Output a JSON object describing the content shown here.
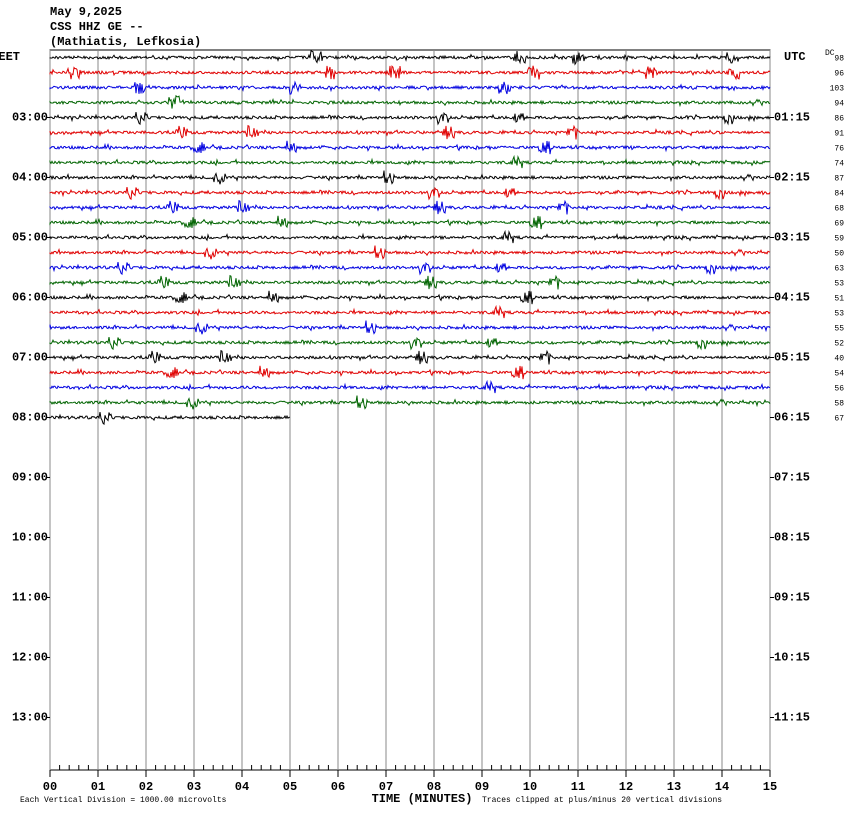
{
  "chart_data": {
    "type": "helicorder",
    "title": [
      "May 9,2025",
      "CSS HHZ GE --",
      "(Mathiatis, Lefkosia)"
    ],
    "left_zone": "EET",
    "right_zone": "UTC",
    "dc_label": "DC",
    "xlabel": "TIME (MINUTES)",
    "scale_note": "Each Vertical Division = 1000.00 microvolts",
    "clip_note": "Traces clipped at plus/minus 20 vertical divisions",
    "xlim": [
      0,
      15
    ],
    "xticks": [
      {
        "value": 0,
        "label": "00"
      },
      {
        "value": 1,
        "label": "01"
      },
      {
        "value": 2,
        "label": "02"
      },
      {
        "value": 3,
        "label": "03"
      },
      {
        "value": 4,
        "label": "04"
      },
      {
        "value": 5,
        "label": "05"
      },
      {
        "value": 6,
        "label": "06"
      },
      {
        "value": 7,
        "label": "07"
      },
      {
        "value": 8,
        "label": "08"
      },
      {
        "value": 9,
        "label": "09"
      },
      10,
      11,
      12,
      13,
      14,
      15
    ],
    "ylim": [
      -0.5,
      47.5
    ],
    "yticks": [
      {
        "value": 4,
        "label": "03:00"
      },
      {
        "value": 8,
        "label": "04:00"
      },
      {
        "value": 12,
        "label": "05:00"
      },
      {
        "value": 16,
        "label": "06:00"
      },
      {
        "value": 20,
        "label": "07:00"
      },
      {
        "value": 24,
        "label": "08:00"
      },
      {
        "value": 28,
        "label": "09:00"
      },
      {
        "value": 32,
        "label": "10:00"
      },
      {
        "value": 36,
        "label": "11:00"
      },
      {
        "value": 40,
        "label": "12:00"
      },
      {
        "value": 44,
        "label": "13:00"
      }
    ],
    "y2ticks": [
      {
        "value": 4,
        "label": "01:15"
      },
      {
        "value": 8,
        "label": "02:15"
      },
      {
        "value": 12,
        "label": "03:15"
      },
      {
        "value": 16,
        "label": "04:15"
      },
      {
        "value": 20,
        "label": "05:15"
      },
      {
        "value": 24,
        "label": "06:15"
      },
      {
        "value": 28,
        "label": "07:15"
      },
      {
        "value": 32,
        "label": "08:15"
      },
      {
        "value": 36,
        "label": "09:15"
      },
      {
        "value": 40,
        "label": "10:15"
      },
      {
        "value": 44,
        "label": "11:15"
      }
    ],
    "colors": [
      "#000000",
      "#e00000",
      "#0000e0",
      "#006400"
    ],
    "traces": [
      {
        "dc": 98,
        "end": 15
      },
      {
        "dc": 96,
        "end": 15
      },
      {
        "dc": 103,
        "end": 15
      },
      {
        "dc": 94,
        "end": 15
      },
      {
        "dc": 86,
        "end": 15
      },
      {
        "dc": 91,
        "end": 15
      },
      {
        "dc": 76,
        "end": 15
      },
      {
        "dc": 74,
        "end": 15
      },
      {
        "dc": 87,
        "end": 15
      },
      {
        "dc": 84,
        "end": 15
      },
      {
        "dc": 68,
        "end": 15
      },
      {
        "dc": 69,
        "end": 15
      },
      {
        "dc": 59,
        "end": 15
      },
      {
        "dc": 50,
        "end": 15
      },
      {
        "dc": 63,
        "end": 15
      },
      {
        "dc": 53,
        "end": 15
      },
      {
        "dc": 51,
        "end": 15
      },
      {
        "dc": 53,
        "end": 15
      },
      {
        "dc": 55,
        "end": 15
      },
      {
        "dc": 52,
        "end": 15
      },
      {
        "dc": 40,
        "end": 15
      },
      {
        "dc": 54,
        "end": 15
      },
      {
        "dc": 56,
        "end": 15
      },
      {
        "dc": 58,
        "end": 15
      },
      {
        "dc": 67,
        "end": 5
      }
    ]
  }
}
